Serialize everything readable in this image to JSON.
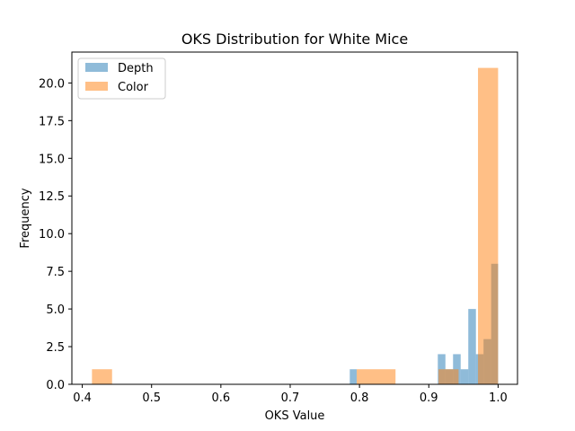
{
  "chart_data": {
    "type": "histogram",
    "title": "OKS Distribution for White Mice",
    "xlabel": "OKS Value",
    "ylabel": "Frequency",
    "xlim": [
      0.385,
      1.028
    ],
    "ylim": [
      0,
      22.05
    ],
    "xticks": [
      0.4,
      0.5,
      0.6,
      0.7,
      0.8,
      0.9,
      1.0
    ],
    "xtick_labels": [
      "0.4",
      "0.5",
      "0.6",
      "0.7",
      "0.8",
      "0.9",
      "1.0"
    ],
    "yticks": [
      0,
      2.5,
      5,
      7.5,
      10,
      12.5,
      15,
      17.5,
      20
    ],
    "ytick_labels": [
      "0.0",
      "2.5",
      "5.0",
      "7.5",
      "10.0",
      "12.5",
      "15.0",
      "17.5",
      "20.0"
    ],
    "legend_position": "upper-left",
    "grid": false,
    "series": [
      {
        "name": "Depth",
        "color": "#1f77b4",
        "opacity": 0.5,
        "bins": [
          {
            "x0": 0.786,
            "x1": 0.796,
            "count": 1
          },
          {
            "x0": 0.913,
            "x1": 0.924,
            "count": 2
          },
          {
            "x0": 0.924,
            "x1": 0.935,
            "count": 1
          },
          {
            "x0": 0.935,
            "x1": 0.946,
            "count": 2
          },
          {
            "x0": 0.946,
            "x1": 0.957,
            "count": 1
          },
          {
            "x0": 0.957,
            "x1": 0.968,
            "count": 5
          },
          {
            "x0": 0.968,
            "x1": 0.979,
            "count": 2
          },
          {
            "x0": 0.979,
            "x1": 0.99,
            "count": 3
          },
          {
            "x0": 0.99,
            "x1": 1.0,
            "count": 8
          }
        ]
      },
      {
        "name": "Color",
        "color": "#ff7f0e",
        "opacity": 0.5,
        "bins": [
          {
            "x0": 0.414,
            "x1": 0.443,
            "count": 1
          },
          {
            "x0": 0.796,
            "x1": 0.852,
            "count": 1
          },
          {
            "x0": 0.914,
            "x1": 0.943,
            "count": 1
          },
          {
            "x0": 0.971,
            "x1": 1.0,
            "count": 21
          }
        ]
      }
    ]
  }
}
